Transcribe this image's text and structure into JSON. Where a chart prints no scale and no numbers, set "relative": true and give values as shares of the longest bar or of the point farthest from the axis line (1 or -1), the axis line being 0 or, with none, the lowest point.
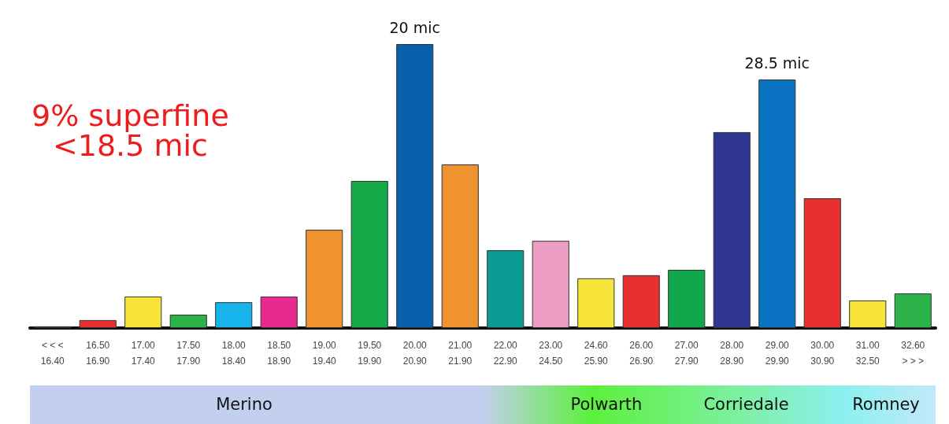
{
  "chart_data": {
    "type": "bar",
    "relative": true,
    "categories": [
      "< < <\n16.40",
      "16.50\n16.90",
      "17.00\n17.40",
      "17.50\n17.90",
      "18.00\n18.40",
      "18.50\n18.90",
      "19.00\n19.40",
      "19.50\n19.90",
      "20.00\n20.90",
      "21.00\n21.90",
      "22.00\n22.90",
      "23.00\n24.50",
      "24.60\n25.90",
      "26.00\n26.90",
      "27.00\n27.90",
      "28.00\n28.90",
      "29.00\n29.90",
      "30.00\n30.90",
      "31.00\n32.50",
      "32.60\n> > >"
    ],
    "values": [
      0.006,
      0.028,
      0.111,
      0.047,
      0.091,
      0.111,
      0.346,
      0.518,
      1,
      0.576,
      0.274,
      0.307,
      0.175,
      0.186,
      0.205,
      0.69,
      0.875,
      0.457,
      0.097,
      0.122
    ],
    "colors": [
      "#1f5f7a",
      "#e8302e",
      "#f7e43a",
      "#2bb34a",
      "#16b4ea",
      "#e8298f",
      "#f0922f",
      "#15a94a",
      "#0a5fab",
      "#f0922f",
      "#0b9a94",
      "#ec9ec5",
      "#f7e43a",
      "#e8302e",
      "#10a84a",
      "#2f3591",
      "#0a74c2",
      "#e8302e",
      "#f7e43a",
      "#2bb34a"
    ],
    "annotations": [
      {
        "text": "20 mic",
        "x": "20.00\n20.90",
        "y": 1
      },
      {
        "text": "28.5 mic",
        "x": "29.00\n29.90",
        "y": 0.875
      },
      "9% superfine\n<18.5 mic",
      "Merino",
      "Polwarth",
      "Corriedale",
      "Romney"
    ]
  }
}
